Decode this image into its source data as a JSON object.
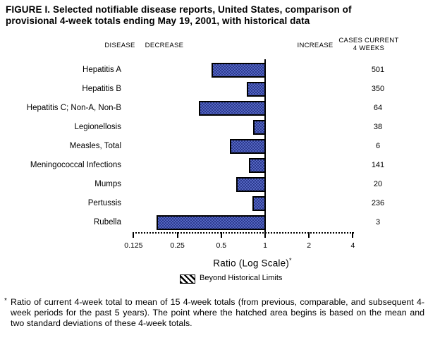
{
  "title": {
    "line1": "FIGURE I. Selected notifiable disease reports, United States, comparison of",
    "line2": "provisional 4-week totals ending May 19, 2001, with historical data"
  },
  "headers": {
    "disease": "DISEASE",
    "decrease": "DECREASE",
    "increase": "INCREASE",
    "cases_line1": "CASES CURRENT",
    "cases_line2": "4 WEEKS"
  },
  "chart_data": {
    "type": "bar",
    "orientation": "horizontal",
    "x_scale": "log",
    "x_axis_range": [
      0.125,
      4
    ],
    "baseline": 1,
    "grid": false,
    "axis_ticks": [
      0.125,
      0.25,
      0.5,
      1,
      2,
      4
    ],
    "axis_tick_labels": [
      "0.125",
      "0.25",
      "0.5",
      "1",
      "2",
      "4"
    ],
    "xlabel": "Ratio (Log Scale)*",
    "categories": [
      "Hepatitis A",
      "Hepatitis B",
      "Hepatitis C; Non-A, Non-B",
      "Legionellosis",
      "Measles, Total",
      "Meningococcal Infections",
      "Mumps",
      "Pertussis",
      "Rubella"
    ],
    "series": [
      {
        "name": "ratio_to_historical_mean",
        "values": [
          0.43,
          0.75,
          0.35,
          0.83,
          0.57,
          0.77,
          0.63,
          0.82,
          0.18
        ]
      },
      {
        "name": "cases_current_4_weeks",
        "values": [
          501,
          350,
          64,
          38,
          6,
          141,
          20,
          236,
          3
        ]
      }
    ],
    "legend_position": "bottom",
    "colors": {
      "bar_fill_dark": "#2c3a8e",
      "bar_fill_light": "#5466c2",
      "bar_border": "#000000"
    }
  },
  "axis_label": {
    "text": "Ratio (Log Scale)",
    "sup": "*"
  },
  "legend": {
    "label": "Beyond Historical Limits"
  },
  "footnote": {
    "marker": "*",
    "text": "Ratio of current 4-week total to mean of 15 4-week totals (from previous, comparable, and subsequent 4-week periods for the past 5 years). The point where the hatched area begins is based on the mean and two standard deviations of these 4-week totals."
  }
}
